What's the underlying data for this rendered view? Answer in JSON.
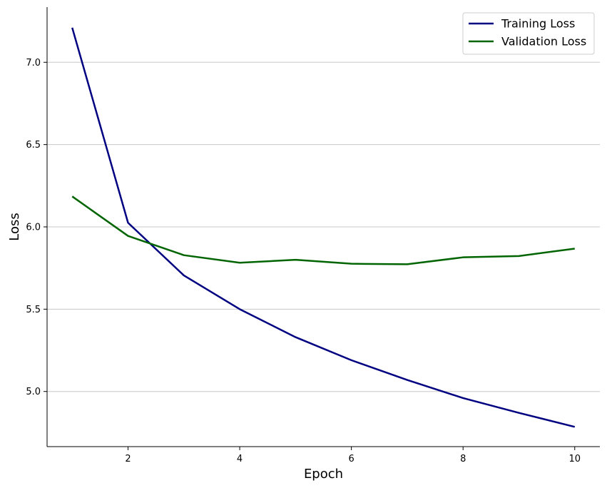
{
  "chart_data": {
    "type": "line",
    "title": "",
    "xlabel": "Epoch",
    "ylabel": "Loss",
    "x": [
      1,
      2,
      3,
      4,
      5,
      6,
      7,
      8,
      9,
      10
    ],
    "xlim": [
      0.55,
      10.45
    ],
    "ylim": [
      4.665,
      7.335
    ],
    "xticks": [
      2,
      4,
      6,
      8,
      10
    ],
    "yticks": [
      5.0,
      5.5,
      6.0,
      6.5,
      7.0
    ],
    "xtick_labels": [
      "2",
      "4",
      "6",
      "8",
      "10"
    ],
    "ytick_labels": [
      "5.0",
      "5.5",
      "6.0",
      "6.5",
      "7.0"
    ],
    "grid": "y-axis only",
    "legend_position": "top-right",
    "series": [
      {
        "name": "Training Loss",
        "color": "#000080",
        "values": [
          7.21,
          6.025,
          5.705,
          5.5,
          5.33,
          5.19,
          5.07,
          4.96,
          4.87,
          4.785
        ]
      },
      {
        "name": "Validation Loss",
        "color": "#006400",
        "values": [
          6.185,
          5.945,
          5.828,
          5.782,
          5.8,
          5.776,
          5.773,
          5.815,
          5.823,
          5.868
        ]
      }
    ]
  }
}
